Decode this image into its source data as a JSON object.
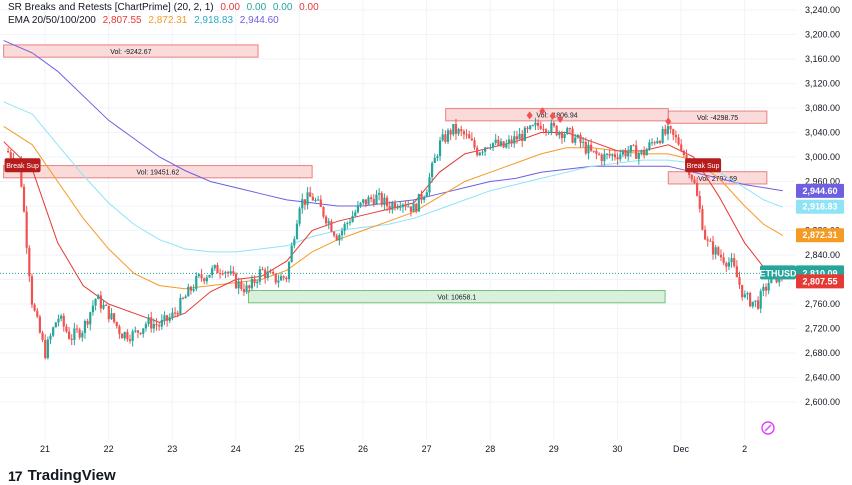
{
  "legend": {
    "indicator_title": "SR Breaks and Retests [ChartPrime] (20, 2, 1)",
    "indicator_values": [
      "0.00",
      "0.00",
      "0.00",
      "0.00"
    ],
    "ema_title": "EMA 20/50/100/200",
    "ema_values": [
      "2,807.55",
      "2,872.31",
      "2,918.83",
      "2,944.60"
    ]
  },
  "brand": {
    "logo": "17",
    "name": "TradingView"
  },
  "colors": {
    "up": "#26a69a",
    "down": "#ef5350",
    "ema20": "#e53935",
    "ema50": "#f59a23",
    "ema100": "#8fe3f5",
    "ema200": "#6d5fe0",
    "resistance_fill": "#fbd7d7",
    "resistance_border": "#e57373",
    "support_fill": "#d5f0d9",
    "support_border": "#66bb6a",
    "badge_purple": "#e040fb"
  },
  "chart_data": {
    "type": "candlestick",
    "symbol": "ETHUSD",
    "x_ticks": [
      "21",
      "22",
      "23",
      "24",
      "25",
      "26",
      "27",
      "28",
      "29",
      "30",
      "Dec",
      "2"
    ],
    "y_ticks": [
      "3,240.00",
      "3,200.00",
      "3,160.00",
      "3,120.00",
      "3,080.00",
      "3,040.00",
      "3,000.00",
      "2,960.00",
      "2,920.00",
      "2,880.00",
      "2,840.00",
      "2,800.00",
      "2,760.00",
      "2,720.00",
      "2,680.00",
      "2,640.00",
      "2,600.00"
    ],
    "ylim": [
      2580,
      3255
    ],
    "xlim": [
      20.35,
      22.27
    ],
    "close_path": [
      [
        20.4,
        3010
      ],
      [
        20.6,
        2990
      ],
      [
        20.8,
        2760
      ],
      [
        21.0,
        2680
      ],
      [
        21.2,
        2740
      ],
      [
        21.4,
        2705
      ],
      [
        21.6,
        2720
      ],
      [
        21.8,
        2770
      ],
      [
        22.0,
        2745
      ],
      [
        22.2,
        2712
      ],
      [
        22.4,
        2710
      ],
      [
        22.6,
        2730
      ],
      [
        22.8,
        2725
      ],
      [
        23.0,
        2740
      ],
      [
        23.2,
        2770
      ],
      [
        23.4,
        2800
      ],
      [
        23.6,
        2812
      ],
      [
        23.8,
        2820
      ],
      [
        24.0,
        2795
      ],
      [
        24.2,
        2782
      ],
      [
        24.4,
        2815
      ],
      [
        24.6,
        2800
      ],
      [
        24.8,
        2805
      ],
      [
        25.0,
        2925
      ],
      [
        25.2,
        2935
      ],
      [
        25.4,
        2905
      ],
      [
        25.6,
        2870
      ],
      [
        25.8,
        2900
      ],
      [
        26.0,
        2925
      ],
      [
        26.2,
        2935
      ],
      [
        26.4,
        2920
      ],
      [
        26.6,
        2930
      ],
      [
        26.8,
        2915
      ],
      [
        27.0,
        2950
      ],
      [
        27.2,
        3020
      ],
      [
        27.4,
        3045
      ],
      [
        27.6,
        3035
      ],
      [
        27.8,
        3010
      ],
      [
        28.0,
        3025
      ],
      [
        28.2,
        3015
      ],
      [
        28.4,
        3030
      ],
      [
        28.6,
        3040
      ],
      [
        28.8,
        3055
      ],
      [
        29.0,
        3045
      ],
      [
        29.2,
        3040
      ],
      [
        29.4,
        3025
      ],
      [
        29.6,
        3005
      ],
      [
        29.8,
        3000
      ],
      [
        30.0,
        3005
      ],
      [
        30.2,
        3010
      ],
      [
        30.4,
        3005
      ],
      [
        30.6,
        3030
      ],
      [
        30.8,
        3040
      ],
      [
        31.0,
        3020
      ],
      [
        31.2,
        2960
      ],
      [
        31.4,
        2860
      ],
      [
        31.6,
        2840
      ],
      [
        31.8,
        2825
      ],
      [
        32.0,
        2770
      ],
      [
        32.2,
        2760
      ],
      [
        32.4,
        2800
      ],
      [
        32.6,
        2808
      ]
    ],
    "ema20": [
      [
        20.35,
        3025
      ],
      [
        20.8,
        2980
      ],
      [
        21.2,
        2860
      ],
      [
        21.6,
        2790
      ],
      [
        22.0,
        2760
      ],
      [
        22.4,
        2745
      ],
      [
        22.8,
        2730
      ],
      [
        23.2,
        2745
      ],
      [
        23.6,
        2780
      ],
      [
        24.0,
        2800
      ],
      [
        24.4,
        2805
      ],
      [
        24.8,
        2830
      ],
      [
        25.2,
        2880
      ],
      [
        25.6,
        2895
      ],
      [
        26.0,
        2905
      ],
      [
        26.4,
        2915
      ],
      [
        26.8,
        2925
      ],
      [
        27.2,
        2975
      ],
      [
        27.6,
        3005
      ],
      [
        28.0,
        3015
      ],
      [
        28.4,
        3025
      ],
      [
        28.8,
        3040
      ],
      [
        29.2,
        3040
      ],
      [
        29.6,
        3025
      ],
      [
        30.0,
        3010
      ],
      [
        30.4,
        3010
      ],
      [
        30.8,
        3020
      ],
      [
        31.2,
        3000
      ],
      [
        31.6,
        2935
      ],
      [
        32.0,
        2860
      ],
      [
        32.3,
        2820
      ],
      [
        32.6,
        2808
      ]
    ],
    "ema50": [
      [
        20.35,
        3050
      ],
      [
        20.8,
        3020
      ],
      [
        21.2,
        2960
      ],
      [
        21.6,
        2900
      ],
      [
        22.0,
        2850
      ],
      [
        22.4,
        2810
      ],
      [
        22.8,
        2790
      ],
      [
        23.2,
        2785
      ],
      [
        23.6,
        2790
      ],
      [
        24.0,
        2795
      ],
      [
        24.4,
        2800
      ],
      [
        24.8,
        2815
      ],
      [
        25.2,
        2845
      ],
      [
        25.6,
        2865
      ],
      [
        26.0,
        2880
      ],
      [
        26.4,
        2895
      ],
      [
        26.8,
        2910
      ],
      [
        27.2,
        2935
      ],
      [
        27.6,
        2960
      ],
      [
        28.0,
        2975
      ],
      [
        28.4,
        2990
      ],
      [
        28.8,
        3005
      ],
      [
        29.2,
        3015
      ],
      [
        29.6,
        3015
      ],
      [
        30.0,
        3010
      ],
      [
        30.4,
        3005
      ],
      [
        30.8,
        3005
      ],
      [
        31.2,
        2995
      ],
      [
        31.6,
        2965
      ],
      [
        32.0,
        2920
      ],
      [
        32.3,
        2890
      ],
      [
        32.6,
        2872
      ]
    ],
    "ema100": [
      [
        20.35,
        3090
      ],
      [
        20.8,
        3070
      ],
      [
        21.2,
        3020
      ],
      [
        21.6,
        2970
      ],
      [
        22.0,
        2925
      ],
      [
        22.4,
        2890
      ],
      [
        22.8,
        2865
      ],
      [
        23.2,
        2850
      ],
      [
        23.6,
        2845
      ],
      [
        24.0,
        2845
      ],
      [
        24.4,
        2850
      ],
      [
        24.8,
        2855
      ],
      [
        25.2,
        2870
      ],
      [
        25.6,
        2880
      ],
      [
        26.0,
        2885
      ],
      [
        26.4,
        2890
      ],
      [
        26.8,
        2900
      ],
      [
        27.2,
        2915
      ],
      [
        27.6,
        2930
      ],
      [
        28.0,
        2945
      ],
      [
        28.4,
        2955
      ],
      [
        28.8,
        2965
      ],
      [
        29.2,
        2975
      ],
      [
        29.6,
        2985
      ],
      [
        30.0,
        2990
      ],
      [
        30.4,
        2995
      ],
      [
        30.8,
        2995
      ],
      [
        31.2,
        2990
      ],
      [
        31.6,
        2975
      ],
      [
        32.0,
        2950
      ],
      [
        32.3,
        2930
      ],
      [
        32.6,
        2918
      ]
    ],
    "ema200": [
      [
        20.35,
        3190
      ],
      [
        20.8,
        3170
      ],
      [
        21.2,
        3140
      ],
      [
        21.6,
        3100
      ],
      [
        22.0,
        3060
      ],
      [
        22.4,
        3030
      ],
      [
        22.8,
        3000
      ],
      [
        23.2,
        2978
      ],
      [
        23.6,
        2960
      ],
      [
        24.0,
        2950
      ],
      [
        24.4,
        2940
      ],
      [
        24.8,
        2930
      ],
      [
        25.2,
        2925
      ],
      [
        25.6,
        2920
      ],
      [
        26.0,
        2920
      ],
      [
        26.4,
        2925
      ],
      [
        26.8,
        2930
      ],
      [
        27.2,
        2940
      ],
      [
        27.6,
        2950
      ],
      [
        28.0,
        2960
      ],
      [
        28.4,
        2965
      ],
      [
        28.8,
        2975
      ],
      [
        29.2,
        2980
      ],
      [
        29.6,
        2985
      ],
      [
        30.0,
        2985
      ],
      [
        30.4,
        2985
      ],
      [
        30.8,
        2985
      ],
      [
        31.2,
        2975
      ],
      [
        31.6,
        2965
      ],
      [
        32.0,
        2955
      ],
      [
        32.3,
        2950
      ],
      [
        32.6,
        2945
      ]
    ],
    "zones": [
      {
        "kind": "resistance",
        "x0": 20.35,
        "x1": 24.35,
        "y_low": 3163,
        "y_high": 3183,
        "label": "Vol: -9242.67"
      },
      {
        "kind": "resistance",
        "x0": 20.35,
        "x1": 25.2,
        "y_low": 2966,
        "y_high": 2986,
        "label": "Vol: 19451.62"
      },
      {
        "kind": "resistance",
        "x0": 27.3,
        "x1": 30.8,
        "y_low": 3059,
        "y_high": 3079,
        "label": "Vol: -1806.94"
      },
      {
        "kind": "resistance",
        "x0": 30.8,
        "x1": 32.35,
        "y_low": 3055,
        "y_high": 3075,
        "label": "Vol: -4298.75"
      },
      {
        "kind": "resistance",
        "x0": 30.8,
        "x1": 32.35,
        "y_low": 2956,
        "y_high": 2976,
        "label": "Vol: 2797.69"
      },
      {
        "kind": "support",
        "x0": 24.2,
        "x1": 30.75,
        "y_low": 2782,
        "y_high": 2762,
        "label": "Vol: 10658.1"
      }
    ],
    "breaks": [
      {
        "x": 20.6,
        "y": 2985,
        "label": "Break Sup"
      },
      {
        "x": 31.3,
        "y": 2985,
        "label": "Break Sup"
      }
    ],
    "diamonds": [
      [
        28.62,
        3068
      ],
      [
        28.82,
        3075
      ],
      [
        28.98,
        3067
      ],
      [
        29.1,
        3062
      ],
      [
        30.8,
        3058
      ]
    ],
    "last_price": 2810.09,
    "price_tags": [
      {
        "label": "2,944.60",
        "y": 2944.6,
        "color": "#6d5fe0"
      },
      {
        "label": "2,918.83",
        "y": 2918.83,
        "color": "#8fe3f5"
      },
      {
        "label": "2,872.31",
        "y": 2872.31,
        "color": "#f59a23"
      },
      {
        "label": "ETHUSD",
        "y": 2810.09,
        "color": "#26a69a",
        "extra": "2,810.09"
      },
      {
        "label": "2,807.55",
        "y": 2797,
        "color": "#e53935"
      }
    ]
  }
}
